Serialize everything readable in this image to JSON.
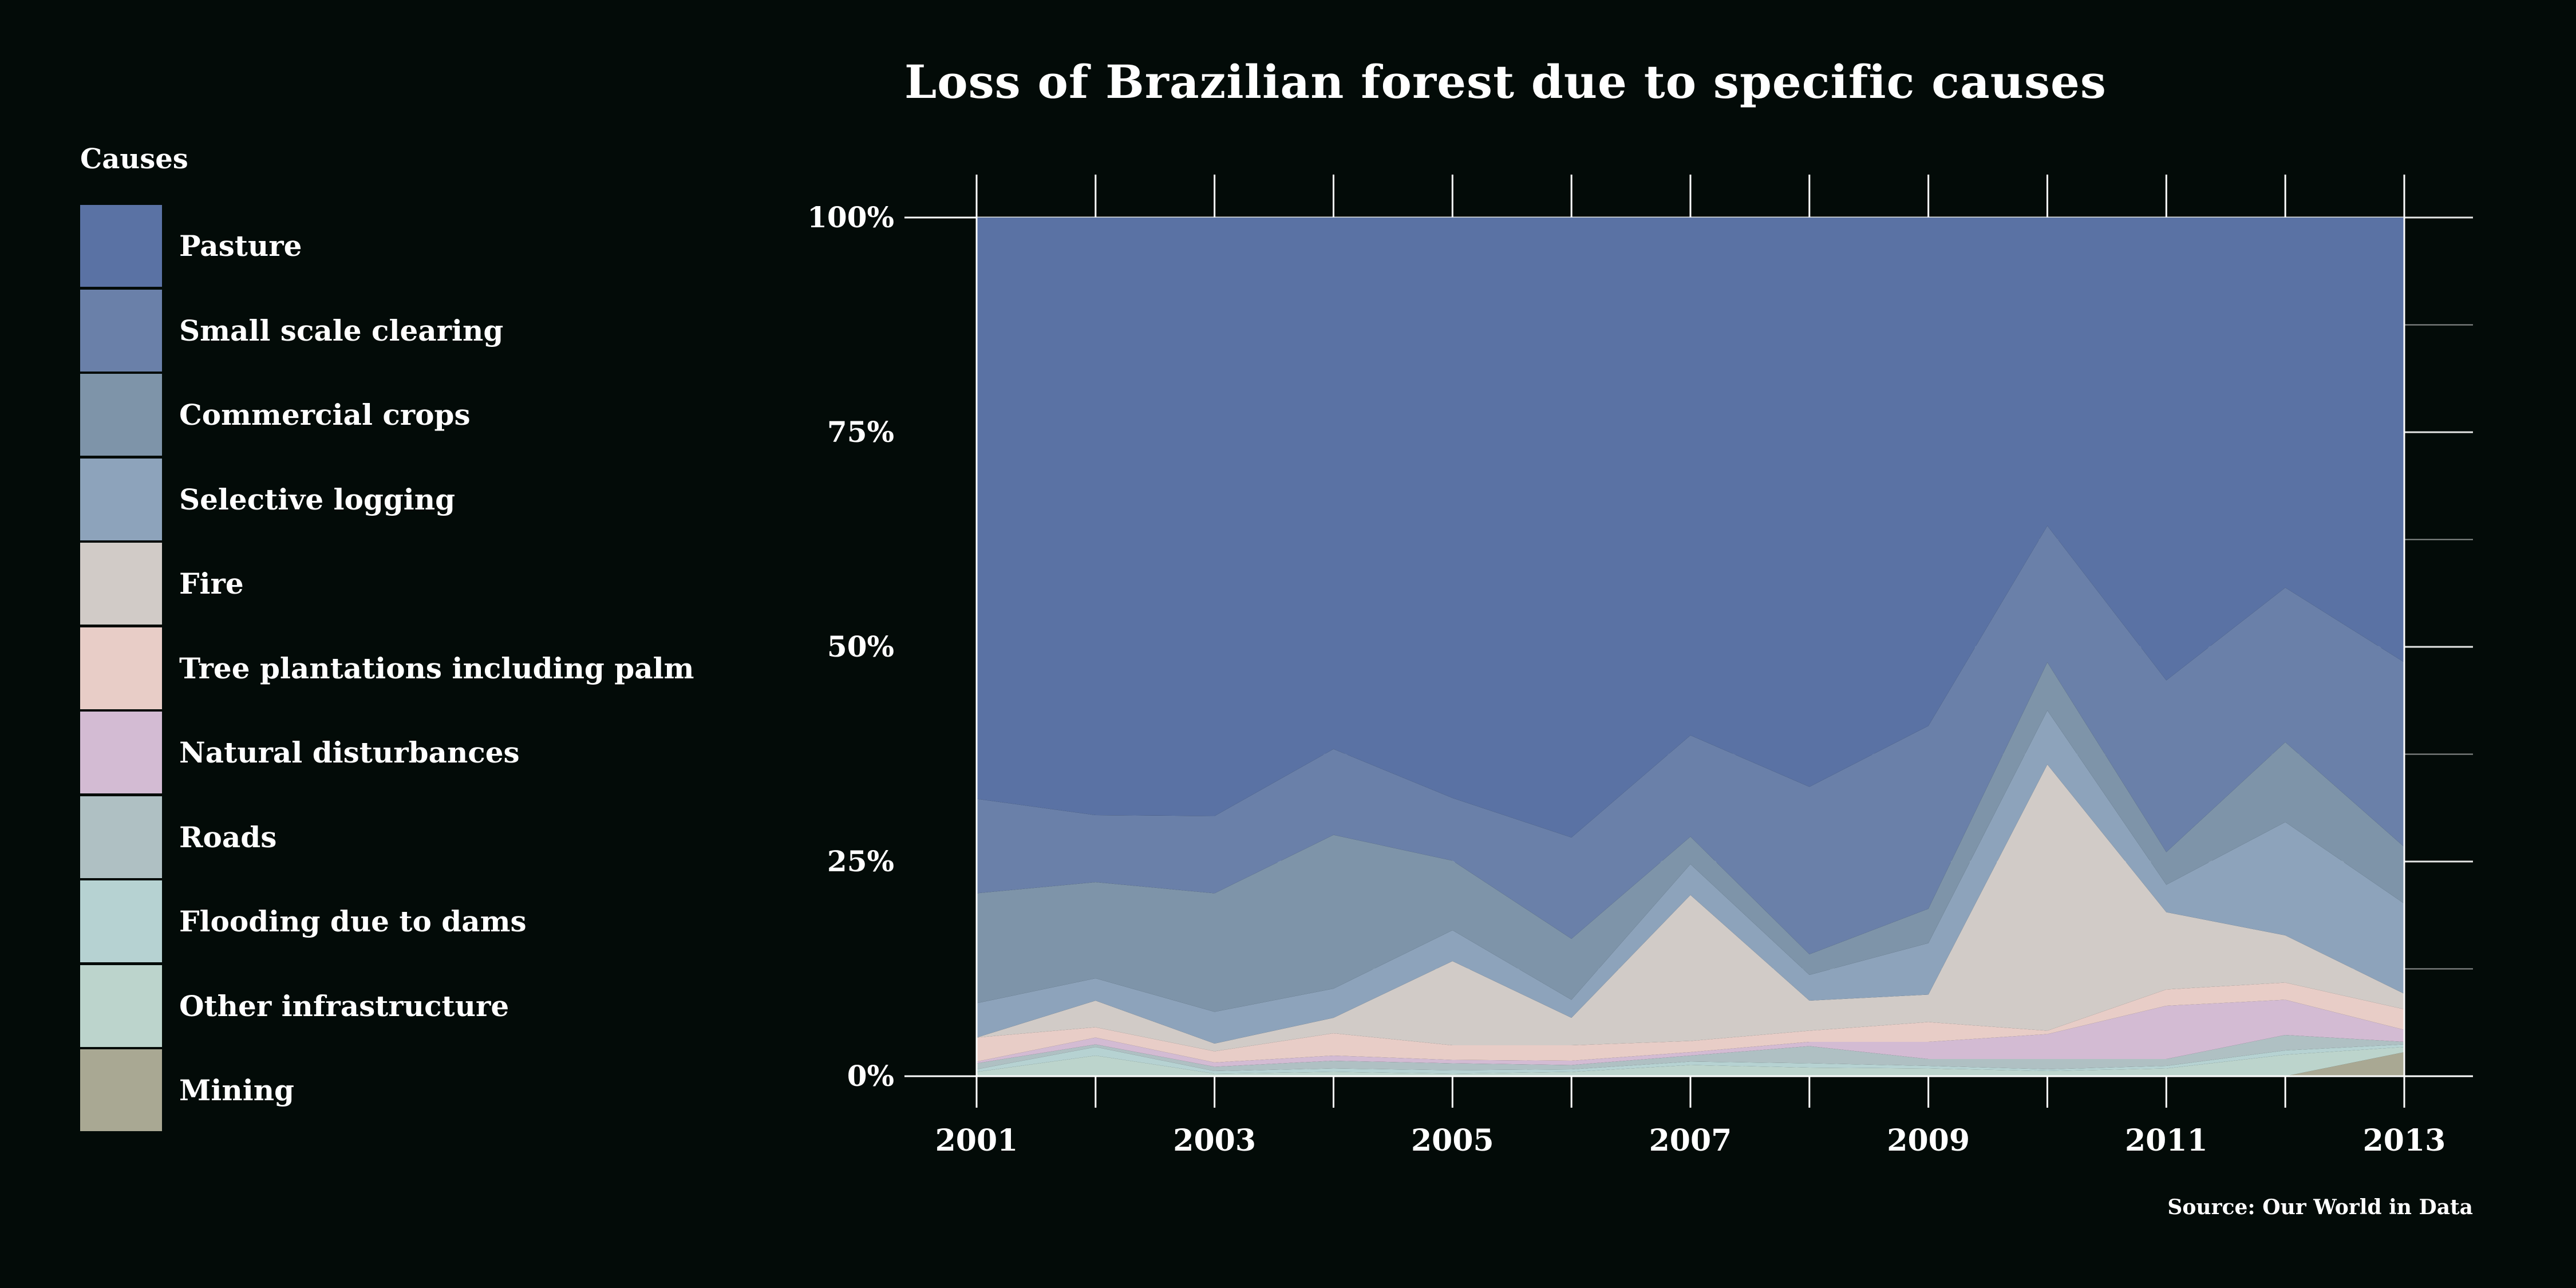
{
  "chart_data": {
    "type": "area",
    "stacked": true,
    "normalized": true,
    "title": "Loss of Brazilian forest due to specific causes",
    "legend_title": "Causes",
    "legend_position": "left",
    "source": "Source: Our World in Data",
    "x": [
      2001,
      2002,
      2003,
      2004,
      2005,
      2006,
      2007,
      2008,
      2009,
      2010,
      2011,
      2012,
      2013
    ],
    "x_ticks": [
      "2001",
      "2003",
      "2005",
      "2007",
      "2009",
      "2011",
      "2013"
    ],
    "y_ticks": [
      "0%",
      "25%",
      "50%",
      "75%",
      "100%"
    ],
    "ylim": [
      0,
      100
    ],
    "grid": "horizontal",
    "series": [
      {
        "name": "Mining",
        "color": "#a9a893",
        "values": [
          0.0,
          0.0,
          0.0,
          0.0,
          0.0,
          0.0,
          0.0,
          0.0,
          0.0,
          0.0,
          0.0,
          0.0,
          2.8
        ]
      },
      {
        "name": "Other infrastructure",
        "color": "#bcd4cc",
        "values": [
          0.5,
          2.4,
          0.3,
          0.5,
          0.3,
          0.5,
          1.3,
          1.0,
          0.9,
          0.6,
          0.9,
          2.5,
          0.6
        ]
      },
      {
        "name": "Flooding due to dams",
        "color": "#b6d2d2",
        "values": [
          0.3,
          1.0,
          0.3,
          0.4,
          0.4,
          0.3,
          0.4,
          0.5,
          0.3,
          0.2,
          0.3,
          0.5,
          0.3
        ]
      },
      {
        "name": "Roads",
        "color": "#afc0c3",
        "values": [
          0.7,
          0.3,
          0.5,
          0.9,
          0.8,
          0.5,
          0.7,
          2.0,
          0.8,
          1.2,
          0.8,
          1.8,
          0.3
        ]
      },
      {
        "name": "Natural disturbances",
        "color": "#d3bbd3",
        "values": [
          0.2,
          0.8,
          0.5,
          0.6,
          0.4,
          0.5,
          0.4,
          0.5,
          2.0,
          2.9,
          6.2,
          4.1,
          1.4
        ]
      },
      {
        "name": "Tree plantations including palm",
        "color": "#e8cdc7",
        "values": [
          2.8,
          1.2,
          1.3,
          2.6,
          1.7,
          1.8,
          1.3,
          1.3,
          2.3,
          0.4,
          1.9,
          2.0,
          2.4
        ]
      },
      {
        "name": "Fire",
        "color": "#d1cbc7",
        "values": [
          0.0,
          3.1,
          0.9,
          1.8,
          9.8,
          3.2,
          17.0,
          3.5,
          3.2,
          31.0,
          9.0,
          5.5,
          1.8
        ]
      },
      {
        "name": "Selective logging",
        "color": "#8da3bb",
        "values": [
          4.0,
          2.6,
          3.7,
          3.4,
          3.6,
          2.1,
          3.6,
          3.0,
          6.0,
          6.3,
          3.2,
          13.2,
          10.5
        ]
      },
      {
        "name": "Commercial crops",
        "color": "#7e94a9",
        "values": [
          12.8,
          11.2,
          13.8,
          17.9,
          8.1,
          7.1,
          3.2,
          2.4,
          4.0,
          5.6,
          3.8,
          9.3,
          6.6
        ]
      },
      {
        "name": "Small scale clearing",
        "color": "#6a80a9",
        "values": [
          11.0,
          7.8,
          9.0,
          10.0,
          7.3,
          11.8,
          11.8,
          19.5,
          21.3,
          15.9,
          20.0,
          18.0,
          21.5
        ]
      },
      {
        "name": "Pasture",
        "color": "#5a72a4",
        "values": [
          67.7,
          69.6,
          69.7,
          61.9,
          67.6,
          72.2,
          60.3,
          66.3,
          59.2,
          35.9,
          53.9,
          43.1,
          51.8
        ]
      }
    ]
  }
}
